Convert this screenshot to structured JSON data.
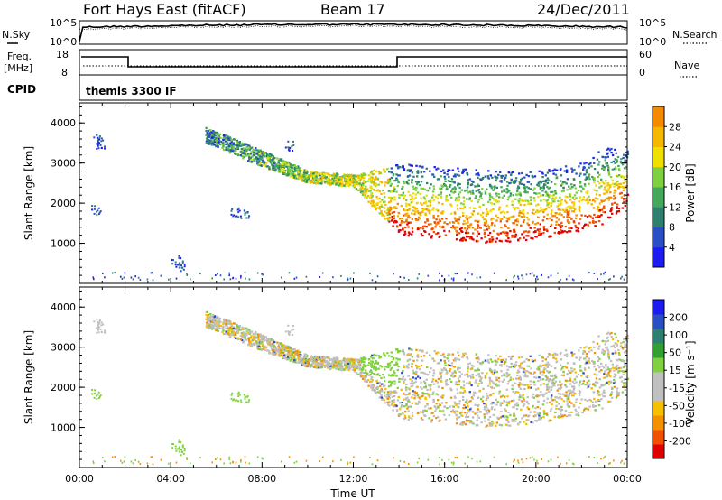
{
  "header": {
    "station": "Fort Hays East (fitACF)",
    "beam": "Beam 17",
    "date": "24/Dec/2011"
  },
  "top_panels": {
    "nsky_label": "N.Sky",
    "nsearch_label": "N.Search",
    "noise_ticks": [
      "10^5",
      "10^0"
    ],
    "freq_label": "Freq.",
    "freq_unit": "[MHz]",
    "freq_ticks": [
      "18",
      "8"
    ],
    "nave_label": "Nave",
    "nave_ticks": [
      "60",
      "0"
    ],
    "cpid_label": "CPID",
    "cpid_text": "themis 3300 IF"
  },
  "colors": {
    "power": [
      "#1c1cf0",
      "#2a4fc4",
      "#2f7f6e",
      "#44a85a",
      "#7fd040",
      "#f0e000",
      "#f5b800",
      "#f58a00",
      "#f05000",
      "#e82000",
      "#e00000"
    ],
    "velocity": [
      "#e00000",
      "#f05000",
      "#f59000",
      "#f5c000",
      "#c0c0c0",
      "#c0c0c0",
      "#80d040",
      "#30a030",
      "#2f7f6e",
      "#2a4fc4",
      "#1c1cf0"
    ]
  },
  "chart_data": [
    {
      "type": "heatmap",
      "name": "power",
      "ylabel": "Slant Range [km]",
      "colorbar_label": "Power [dB]",
      "colorbar_ticks": [
        "28",
        "24",
        "20",
        "16",
        "12",
        "8",
        "4"
      ],
      "ylim": [
        0,
        4500
      ],
      "yticks": [
        "1000",
        "2000",
        "3000",
        "4000"
      ],
      "xlim": [
        0,
        24
      ],
      "xticks": [
        "00:00",
        "04:00",
        "08:00",
        "12:00",
        "16:00",
        "20:00",
        "00:00"
      ],
      "echo_band_lower_km": [
        [
          5.5,
          3500
        ],
        [
          8,
          2900
        ],
        [
          10,
          2500
        ],
        [
          12,
          2400
        ],
        [
          13,
          1800
        ],
        [
          14,
          1200
        ],
        [
          16,
          1100
        ],
        [
          18,
          1000
        ],
        [
          20,
          1100
        ],
        [
          22,
          1300
        ],
        [
          23,
          1500
        ],
        [
          24,
          2000
        ]
      ],
      "echo_band_upper_km": [
        [
          5.5,
          3900
        ],
        [
          8,
          3300
        ],
        [
          10,
          2800
        ],
        [
          12,
          2700
        ],
        [
          14,
          3000
        ],
        [
          16,
          2900
        ],
        [
          18,
          2800
        ],
        [
          20,
          2800
        ],
        [
          22,
          3000
        ],
        [
          23,
          3400
        ],
        [
          24,
          3300
        ]
      ]
    },
    {
      "type": "heatmap",
      "name": "velocity",
      "ylabel": "Slant Range [km]",
      "xlabel": "Time UT",
      "colorbar_label": "Velocity [m s⁻¹]",
      "colorbar_ticks": [
        "200",
        "100",
        "50",
        "15",
        "-15",
        "-50",
        "-100",
        "-200"
      ],
      "ylim": [
        0,
        4500
      ],
      "yticks": [
        "1000",
        "2000",
        "3000",
        "4000"
      ],
      "xlim": [
        0,
        24
      ],
      "xticks": [
        "00:00",
        "04:00",
        "08:00",
        "12:00",
        "16:00",
        "20:00",
        "00:00"
      ]
    }
  ]
}
